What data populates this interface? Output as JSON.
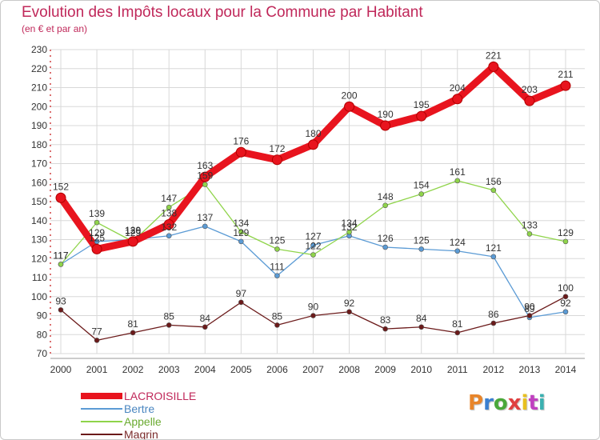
{
  "header": {
    "title": "Evolution des Impôts locaux pour la Commune par Habitant",
    "subtitle": "(en € et par an)"
  },
  "logo": {
    "text": "Proxiti",
    "colors": [
      "#e8852a",
      "#3a7fd0",
      "#4aa83a",
      "#e04040",
      "#e8c020",
      "#c040c0",
      "#3ab0b0"
    ]
  },
  "colors": {
    "title": "#c0285a",
    "grid": "#d8d8d8",
    "axis_text": "#333333"
  },
  "chart_data": {
    "type": "line",
    "title": "Evolution des Impôts locaux pour la Commune par Habitant",
    "ylabel": "(en € et par an)",
    "xlabel": "",
    "ylim": [
      70,
      230
    ],
    "yticks": [
      70,
      80,
      90,
      100,
      110,
      120,
      130,
      140,
      150,
      160,
      170,
      180,
      190,
      200,
      210,
      220,
      230
    ],
    "grid": true,
    "legend": "bottom-left",
    "categories": [
      "2000",
      "2001",
      "2002",
      "2003",
      "2004",
      "2005",
      "2006",
      "2007",
      "2008",
      "2009",
      "2010",
      "2011",
      "2012",
      "2013",
      "2014"
    ],
    "series": [
      {
        "name": "LACROISILLE",
        "color": "#e8141e",
        "text_color": "#c0285a",
        "width": 9,
        "marker": 6,
        "values": [
          152,
          125,
          129,
          138,
          163,
          176,
          172,
          180,
          200,
          190,
          195,
          204,
          221,
          203,
          211
        ],
        "labels": [
          "152",
          "125",
          "129",
          "138",
          "163",
          "176",
          "172",
          "180",
          "200",
          "190",
          "195",
          "204",
          "221",
          "203",
          "211"
        ]
      },
      {
        "name": "Bertre",
        "color": "#5b9bd5",
        "text_color": "#4a86c0",
        "width": 1.3,
        "marker": 3,
        "values": [
          117,
          129,
          130,
          132,
          137,
          129,
          111,
          127,
          132,
          126,
          125,
          124,
          121,
          89,
          92
        ],
        "labels": [
          "117",
          "129",
          "130",
          "132",
          "137",
          "129",
          "111",
          "127",
          "132",
          "126",
          "125",
          "124",
          "121",
          "89",
          "92"
        ]
      },
      {
        "name": "Appelle",
        "color": "#8fd44a",
        "text_color": "#6aaa30",
        "width": 1.3,
        "marker": 3,
        "values": [
          117,
          139,
          129,
          147,
          159,
          134,
          125,
          122,
          134,
          148,
          154,
          161,
          156,
          133,
          129
        ],
        "labels": [
          "117",
          "139",
          "129",
          "147",
          "159",
          "134",
          "125",
          "122",
          "134",
          "148",
          "154",
          "161",
          "156",
          "133",
          "129"
        ]
      },
      {
        "name": "Magrin",
        "color": "#6b1a1a",
        "text_color": "#7a2a2a",
        "width": 1.3,
        "marker": 3,
        "values": [
          93,
          77,
          81,
          85,
          84,
          97,
          85,
          90,
          92,
          83,
          84,
          81,
          86,
          90,
          100
        ],
        "labels": [
          "93",
          "77",
          "81",
          "85",
          "84",
          "97",
          "85",
          "90",
          "92",
          "83",
          "84",
          "81",
          "86",
          "90",
          "100"
        ]
      }
    ]
  }
}
